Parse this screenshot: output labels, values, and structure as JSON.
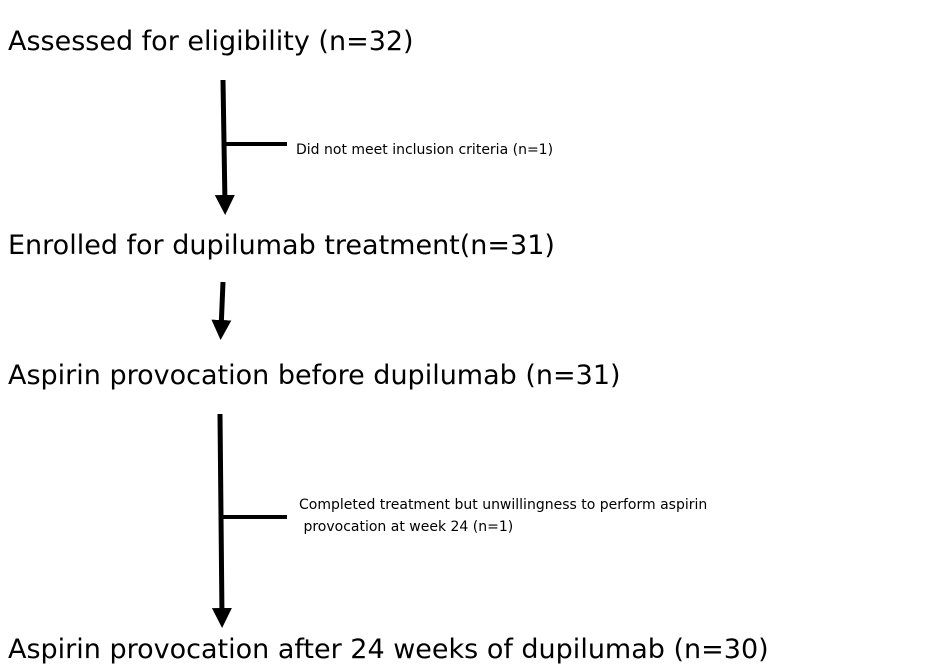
{
  "nodes": [
    {
      "label": "Assessed for eligibility (n=32)"
    },
    {
      "label": "Enrolled for dupilumab treatment(n=31)"
    },
    {
      "label": "Aspirin provocation before dupilumab (n=31)"
    },
    {
      "label": "Aspirin provocation after 24 weeks of dupilumab (n=30)"
    }
  ],
  "exclusions": [
    {
      "lines": [
        "Did not meet inclusion criteria (n=1)"
      ]
    },
    {
      "lines": [
        "Completed treatment but unwillingness to perform aspirin",
        " provocation at week 24 (n=1)"
      ]
    }
  ]
}
